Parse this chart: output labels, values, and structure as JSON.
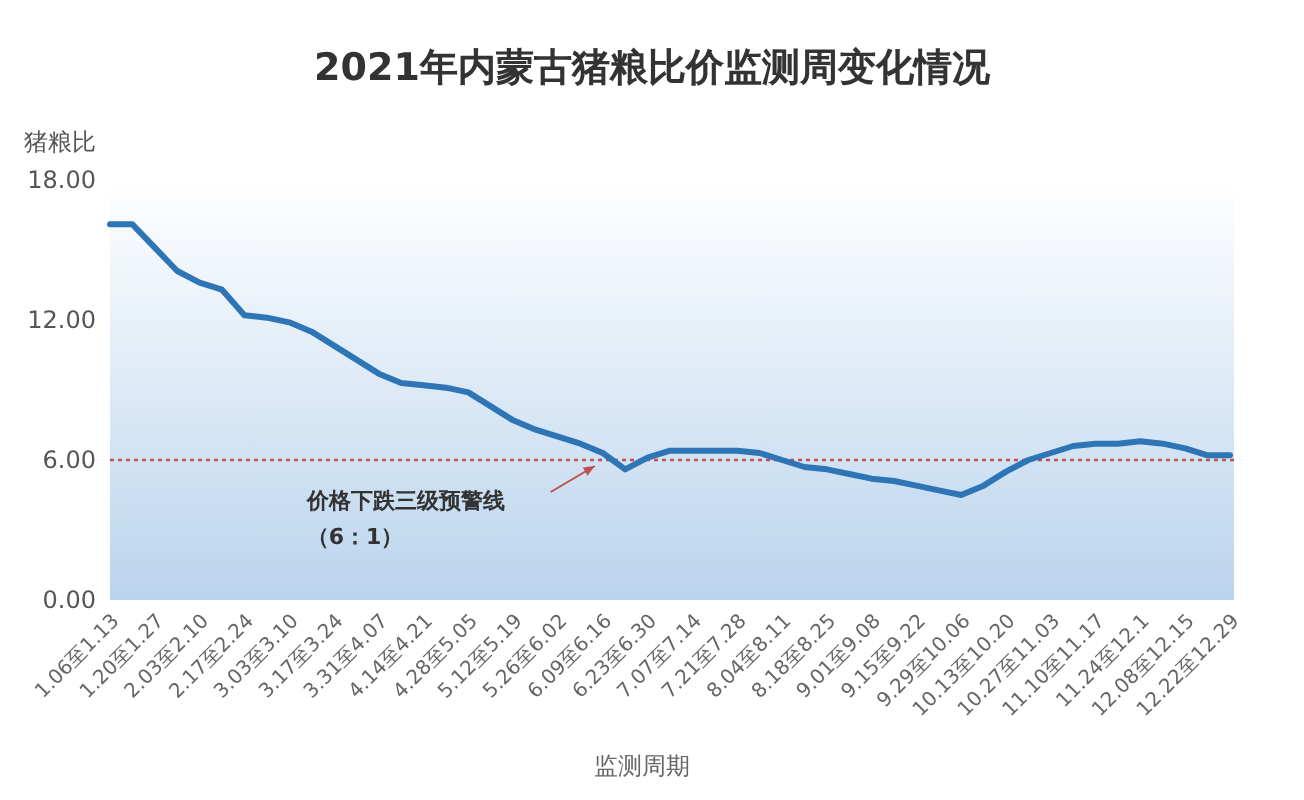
{
  "chart_data": {
    "type": "line",
    "title": "2021年内蒙古猪粮比价监测周变化情况",
    "xlabel": "监测周期",
    "ylabel": "猪粮比",
    "categories": [
      "1.06至1.13",
      null,
      "1.20至1.27",
      null,
      "2.03至2.10",
      null,
      "2.17至2.24",
      null,
      "3.03至3.10",
      null,
      "3.17至3.24",
      null,
      "3.31至4.07",
      null,
      "4.14至4.21",
      null,
      "4.28至5.05",
      null,
      "5.12至5.19",
      null,
      "5.26至6.02",
      null,
      "6.09至6.16",
      null,
      "6.23至6.30",
      null,
      "7.07至7.14",
      null,
      "7.21至7.28",
      null,
      "8.04至8.11",
      null,
      "8.18至8.25",
      null,
      "9.01至9.08",
      null,
      "9.15至9.22",
      null,
      "9.29至10.06",
      null,
      "10.13至10.20",
      null,
      "10.27至11.03",
      null,
      "11.10至11.17",
      null,
      "11.24至12.1",
      null,
      "12.08至12.15",
      null,
      "12.22至12.29"
    ],
    "values": [
      16.1,
      16.1,
      15.1,
      14.1,
      13.6,
      13.3,
      12.2,
      12.1,
      11.9,
      11.5,
      10.9,
      10.3,
      9.7,
      9.3,
      9.2,
      9.1,
      8.9,
      8.3,
      7.7,
      7.3,
      7.0,
      6.7,
      6.3,
      5.6,
      6.1,
      6.4,
      6.4,
      6.4,
      6.4,
      6.3,
      6.0,
      5.7,
      5.6,
      5.4,
      5.2,
      5.1,
      4.9,
      4.7,
      4.5,
      4.9,
      5.5,
      6.0,
      6.3,
      6.6,
      6.7,
      6.7,
      6.8,
      6.7,
      6.5,
      6.2,
      6.2
    ],
    "color": "#2e75b6",
    "line_style": "solid",
    "ylim": [
      0,
      18
    ],
    "yticks": [
      {
        "value": 0,
        "label": "0.00"
      },
      {
        "value": 6,
        "label": "6.00"
      },
      {
        "value": 12,
        "label": "12.00"
      },
      {
        "value": 18,
        "label": "18.00"
      }
    ],
    "ref_lines": [
      {
        "axis": "y",
        "value": 6,
        "label": "价格下跌三级预警线（6：1）",
        "color": "#c0504d",
        "line_style": "dotted"
      }
    ]
  }
}
